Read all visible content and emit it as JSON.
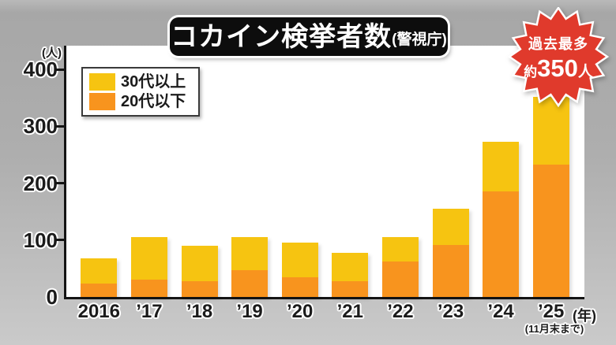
{
  "title": {
    "main": "コカイン検挙者数",
    "source": "(警視庁)"
  },
  "badge": {
    "line1": "過去最多",
    "approx": "約",
    "number": "350",
    "unit": "人",
    "color": "#E03A2C"
  },
  "legend": {
    "items": [
      {
        "label": "30代以上",
        "color": "#F6C411"
      },
      {
        "label": "20代以下",
        "color": "#F8941E"
      }
    ]
  },
  "chart_data": {
    "type": "bar",
    "stacked": true,
    "title": "コカイン検挙者数(警視庁)",
    "categories": [
      "2016",
      "’17",
      "’18",
      "’19",
      "’20",
      "’21",
      "’22",
      "’23",
      "’24",
      "’25"
    ],
    "series": [
      {
        "name": "20代以下",
        "color": "#F8941E",
        "values": [
          24,
          31,
          28,
          47,
          35,
          28,
          62,
          92,
          185,
          233
        ]
      },
      {
        "name": "30代以上",
        "color": "#F6C411",
        "values": [
          44,
          74,
          62,
          58,
          60,
          50,
          43,
          63,
          88,
          119
        ]
      }
    ],
    "y_axis": {
      "unit": "(人)",
      "ticks": [
        0,
        100,
        200,
        300,
        400
      ],
      "ylim": [
        0,
        440
      ]
    },
    "x_axis": {
      "unit": "(年)",
      "last_category_note": "(11月末まで)"
    },
    "annotation": "過去最多 約350人 (2025年)",
    "legend_position": "top-left",
    "grid": false
  }
}
